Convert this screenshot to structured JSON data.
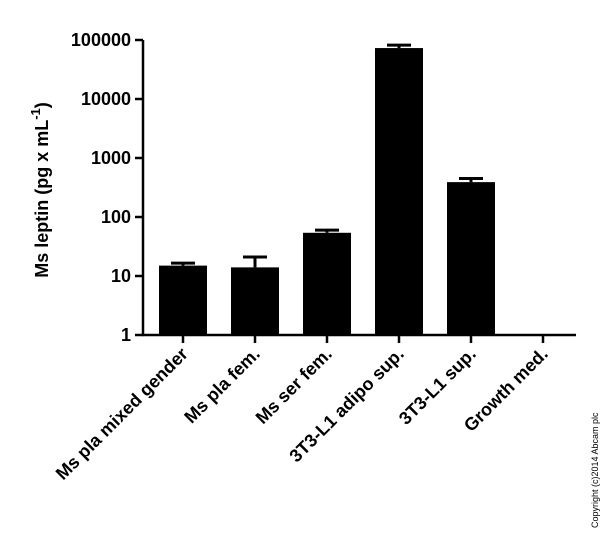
{
  "chart_data": {
    "type": "bar",
    "y_label": "Ms leptin (pg x mL",
    "y_label_sup": "-1",
    "y_label_end": ")",
    "categories": [
      "Ms pla mixed gender",
      "Ms pla fem.",
      "Ms ser fem.",
      "3T3-L1 adipo sup.",
      "3T3-L1 sup.",
      "Growth med."
    ],
    "values": [
      15,
      14,
      54,
      73000,
      390,
      null
    ],
    "errors": [
      1.5,
      7,
      6,
      9000,
      60,
      null
    ],
    "color": "#000000",
    "log_scale": true,
    "ylim": [
      1,
      100000
    ],
    "yticks": [
      1,
      10,
      100,
      1000,
      10000,
      100000
    ],
    "copyright": "Copyright (c)2014 Abcam plc"
  }
}
